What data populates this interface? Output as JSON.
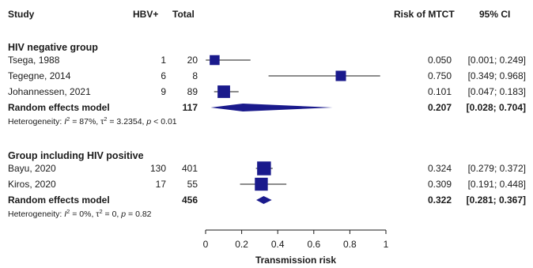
{
  "headers": {
    "study": "Study",
    "events": "HBV+",
    "total": "Total",
    "effect": "Risk of MTCT",
    "ci": "95% CI"
  },
  "colors": {
    "box": "#1a1a8c",
    "diamond": "#1a1a8c",
    "line": "#1a1a1a"
  },
  "chart_data": {
    "type": "forest",
    "xlabel": "Transmission risk",
    "xlim": [
      0,
      1
    ],
    "xticks": [
      "0",
      "0.2",
      "0.4",
      "0.6",
      "0.8",
      "1"
    ],
    "groups": [
      {
        "name": "HIV negative group",
        "studies": [
          {
            "study": "Tsega, 1988",
            "events": "1",
            "total": "20",
            "est": 0.05,
            "lo": 0.001,
            "hi": 0.249,
            "est_text": "0.050",
            "ci_text": "[0.001; 0.249]",
            "weight": 0.5
          },
          {
            "study": "Tegegne, 2014",
            "events": "6",
            "total": "8",
            "est": 0.75,
            "lo": 0.349,
            "hi": 0.968,
            "est_text": "0.750",
            "ci_text": "[0.349; 0.968]",
            "weight": 0.55
          },
          {
            "study": "Johannessen, 2021",
            "events": "9",
            "total": "89",
            "est": 0.101,
            "lo": 0.047,
            "hi": 0.183,
            "est_text": "0.101",
            "ci_text": "[0.047; 0.183]",
            "weight": 0.8
          }
        ],
        "pooled": {
          "label": "Random effects model",
          "total": "117",
          "est": 0.207,
          "lo": 0.028,
          "hi": 0.704,
          "est_text": "0.207",
          "ci_text": "[0.028; 0.704]"
        },
        "heterogeneity": {
          "prefix": "Heterogeneity: ",
          "i2_sym": "I",
          "i2_val": " = 87%, ",
          "tau_sym": "τ",
          "tau_val": " = 3.2354, ",
          "p_sym": "p",
          "p_val": " < 0.01"
        }
      },
      {
        "name": "Group including HIV positive",
        "studies": [
          {
            "study": "Bayu, 2020",
            "events": "130",
            "total": "401",
            "est": 0.324,
            "lo": 0.279,
            "hi": 0.372,
            "est_text": "0.324",
            "ci_text": "[0.279; 0.372]",
            "weight": 0.95
          },
          {
            "study": "Kiros, 2020",
            "events": "17",
            "total": "55",
            "est": 0.309,
            "lo": 0.191,
            "hi": 0.448,
            "est_text": "0.309",
            "ci_text": "[0.191; 0.448]",
            "weight": 0.85
          }
        ],
        "pooled": {
          "label": "Random effects model",
          "total": "456",
          "est": 0.322,
          "lo": 0.281,
          "hi": 0.367,
          "est_text": "0.322",
          "ci_text": "[0.281; 0.367]"
        },
        "heterogeneity": {
          "prefix": "Heterogeneity: ",
          "i2_sym": "I",
          "i2_val": " = 0%, ",
          "tau_sym": "τ",
          "tau_val": " = 0, ",
          "p_sym": "p",
          "p_val": " = 0.82"
        }
      }
    ]
  }
}
